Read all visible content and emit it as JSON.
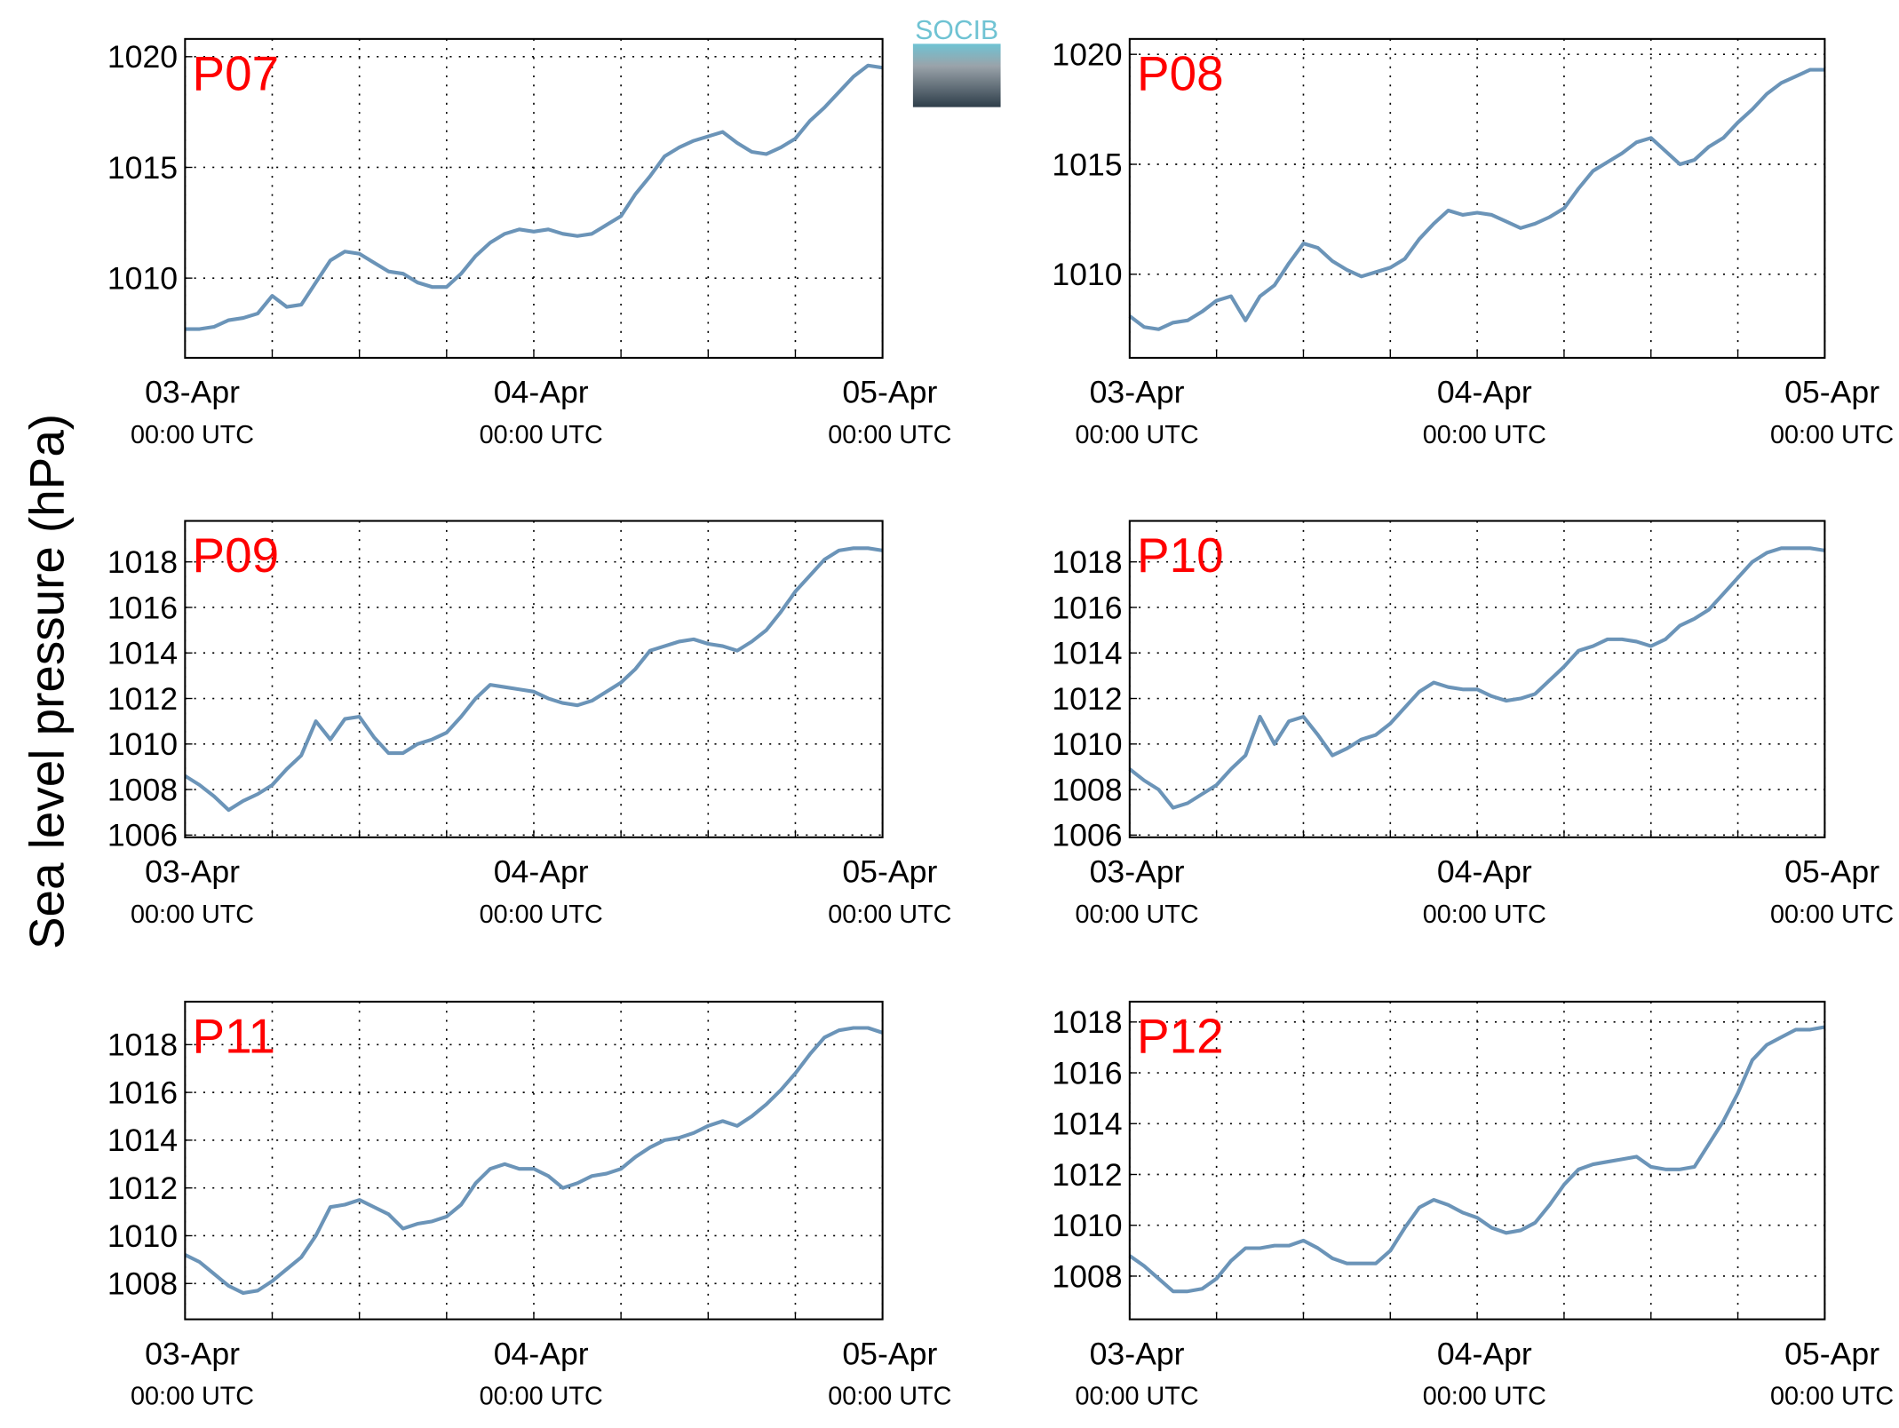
{
  "ylabel": "Sea level pressure (hPa)",
  "logo": "SOCIB",
  "chart_data": [
    {
      "type": "line",
      "title": "P07",
      "x": [
        0,
        1,
        2,
        3,
        4,
        5,
        6,
        7,
        8,
        9,
        10,
        11,
        12,
        13,
        14,
        15,
        16,
        17,
        18,
        19,
        20,
        21,
        22,
        23,
        24,
        25,
        26,
        27,
        28,
        29,
        30,
        31,
        32,
        33,
        34,
        35,
        36,
        37,
        38,
        39,
        40,
        41,
        42,
        43,
        44,
        45,
        46,
        47,
        48
      ],
      "series": [
        {
          "name": "P07",
          "color": "#6b94b8",
          "values": [
            1007.7,
            1007.7,
            1007.8,
            1008.1,
            1008.2,
            1008.4,
            1009.2,
            1008.7,
            1008.8,
            1009.8,
            1010.8,
            1011.2,
            1011.1,
            1010.7,
            1010.3,
            1010.2,
            1009.8,
            1009.6,
            1009.6,
            1010.2,
            1011.0,
            1011.6,
            1012.0,
            1012.2,
            1012.1,
            1012.2,
            1012.0,
            1011.9,
            1012.0,
            1012.4,
            1012.8,
            1013.8,
            1014.6,
            1015.5,
            1015.9,
            1016.2,
            1016.4,
            1016.6,
            1016.1,
            1015.7,
            1015.6,
            1015.9,
            1016.3,
            1017.1,
            1017.7,
            1018.4,
            1019.1,
            1019.6,
            1019.5
          ]
        }
      ],
      "xlim": [
        0,
        48
      ],
      "xticks": [
        {
          "value": 0,
          "label": "03-Apr\n00:00 UTC"
        },
        6,
        12,
        18,
        {
          "value": 24,
          "label": "04-Apr\n00:00 UTC"
        },
        30,
        36,
        42,
        {
          "value": 48,
          "label": "05-Apr\n00:00 UTC"
        }
      ],
      "ylim": [
        1006.4,
        1020.8
      ],
      "yticks": [
        1010,
        1015,
        1020
      ],
      "grid": true
    },
    {
      "type": "line",
      "title": "P08",
      "x": [
        0,
        1,
        2,
        3,
        4,
        5,
        6,
        7,
        8,
        9,
        10,
        11,
        12,
        13,
        14,
        15,
        16,
        17,
        18,
        19,
        20,
        21,
        22,
        23,
        24,
        25,
        26,
        27,
        28,
        29,
        30,
        31,
        32,
        33,
        34,
        35,
        36,
        37,
        38,
        39,
        40,
        41,
        42,
        43,
        44,
        45,
        46,
        47,
        48
      ],
      "series": [
        {
          "name": "P08",
          "color": "#6b94b8",
          "values": [
            1008.1,
            1007.6,
            1007.5,
            1007.8,
            1007.9,
            1008.3,
            1008.8,
            1009.0,
            1007.9,
            1009.0,
            1009.5,
            1010.5,
            1011.4,
            1011.2,
            1010.6,
            1010.2,
            1009.9,
            1010.1,
            1010.3,
            1010.7,
            1011.6,
            1012.3,
            1012.9,
            1012.7,
            1012.8,
            1012.7,
            1012.4,
            1012.1,
            1012.3,
            1012.6,
            1013.0,
            1013.9,
            1014.7,
            1015.1,
            1015.5,
            1016.0,
            1016.2,
            1015.6,
            1015.0,
            1015.2,
            1015.8,
            1016.2,
            1016.9,
            1017.5,
            1018.2,
            1018.7,
            1019.0,
            1019.3,
            1019.3
          ]
        }
      ],
      "xlim": [
        0,
        48
      ],
      "xticks": [
        {
          "value": 0,
          "label": "03-Apr\n00:00 UTC"
        },
        6,
        12,
        18,
        {
          "value": 24,
          "label": "04-Apr\n00:00 UTC"
        },
        30,
        36,
        42,
        {
          "value": 48,
          "label": "05-Apr\n00:00 UTC"
        }
      ],
      "ylim": [
        1006.2,
        1020.7
      ],
      "yticks": [
        1010,
        1015,
        1020
      ],
      "grid": true
    },
    {
      "type": "line",
      "title": "P09",
      "x": [
        0,
        1,
        2,
        3,
        4,
        5,
        6,
        7,
        8,
        9,
        10,
        11,
        12,
        13,
        14,
        15,
        16,
        17,
        18,
        19,
        20,
        21,
        22,
        23,
        24,
        25,
        26,
        27,
        28,
        29,
        30,
        31,
        32,
        33,
        34,
        35,
        36,
        37,
        38,
        39,
        40,
        41,
        42,
        43,
        44,
        45,
        46,
        47,
        48
      ],
      "series": [
        {
          "name": "P09",
          "color": "#6b94b8",
          "values": [
            1008.6,
            1008.2,
            1007.7,
            1007.1,
            1007.5,
            1007.8,
            1008.2,
            1008.9,
            1009.5,
            1011.0,
            1010.2,
            1011.1,
            1011.2,
            1010.3,
            1009.6,
            1009.6,
            1010.0,
            1010.2,
            1010.5,
            1011.2,
            1012.0,
            1012.6,
            1012.5,
            1012.4,
            1012.3,
            1012.0,
            1011.8,
            1011.7,
            1011.9,
            1012.3,
            1012.7,
            1013.3,
            1014.1,
            1014.3,
            1014.5,
            1014.6,
            1014.4,
            1014.3,
            1014.1,
            1014.5,
            1015.0,
            1015.8,
            1016.7,
            1017.4,
            1018.1,
            1018.5,
            1018.6,
            1018.6,
            1018.5
          ]
        }
      ],
      "xlim": [
        0,
        48
      ],
      "xticks": [
        {
          "value": 0,
          "label": "03-Apr\n00:00 UTC"
        },
        6,
        12,
        18,
        {
          "value": 24,
          "label": "04-Apr\n00:00 UTC"
        },
        30,
        36,
        42,
        {
          "value": 48,
          "label": "05-Apr\n00:00 UTC"
        }
      ],
      "ylim": [
        1005.9,
        1019.8
      ],
      "yticks": [
        1006,
        1008,
        1010,
        1012,
        1014,
        1016,
        1018
      ],
      "grid": true
    },
    {
      "type": "line",
      "title": "P10",
      "x": [
        0,
        1,
        2,
        3,
        4,
        5,
        6,
        7,
        8,
        9,
        10,
        11,
        12,
        13,
        14,
        15,
        16,
        17,
        18,
        19,
        20,
        21,
        22,
        23,
        24,
        25,
        26,
        27,
        28,
        29,
        30,
        31,
        32,
        33,
        34,
        35,
        36,
        37,
        38,
        39,
        40,
        41,
        42,
        43,
        44,
        45,
        46,
        47,
        48
      ],
      "series": [
        {
          "name": "P10",
          "color": "#6b94b8",
          "values": [
            1008.9,
            1008.4,
            1008.0,
            1007.2,
            1007.4,
            1007.8,
            1008.2,
            1008.9,
            1009.5,
            1011.2,
            1010.0,
            1011.0,
            1011.2,
            1010.4,
            1009.5,
            1009.8,
            1010.2,
            1010.4,
            1010.9,
            1011.6,
            1012.3,
            1012.7,
            1012.5,
            1012.4,
            1012.4,
            1012.1,
            1011.9,
            1012.0,
            1012.2,
            1012.8,
            1013.4,
            1014.1,
            1014.3,
            1014.6,
            1014.6,
            1014.5,
            1014.3,
            1014.6,
            1015.2,
            1015.5,
            1015.9,
            1016.6,
            1017.3,
            1018.0,
            1018.4,
            1018.6,
            1018.6,
            1018.6,
            1018.5
          ]
        }
      ],
      "xlim": [
        0,
        48
      ],
      "xticks": [
        {
          "value": 0,
          "label": "03-Apr\n00:00 UTC"
        },
        6,
        12,
        18,
        {
          "value": 24,
          "label": "04-Apr\n00:00 UTC"
        },
        30,
        36,
        42,
        {
          "value": 48,
          "label": "05-Apr\n00:00 UTC"
        }
      ],
      "ylim": [
        1005.9,
        1019.8
      ],
      "yticks": [
        1006,
        1008,
        1010,
        1012,
        1014,
        1016,
        1018
      ],
      "grid": true
    },
    {
      "type": "line",
      "title": "P11",
      "x": [
        0,
        1,
        2,
        3,
        4,
        5,
        6,
        7,
        8,
        9,
        10,
        11,
        12,
        13,
        14,
        15,
        16,
        17,
        18,
        19,
        20,
        21,
        22,
        23,
        24,
        25,
        26,
        27,
        28,
        29,
        30,
        31,
        32,
        33,
        34,
        35,
        36,
        37,
        38,
        39,
        40,
        41,
        42,
        43,
        44,
        45,
        46,
        47,
        48
      ],
      "series": [
        {
          "name": "P11",
          "color": "#6b94b8",
          "values": [
            1009.2,
            1008.9,
            1008.4,
            1007.9,
            1007.6,
            1007.7,
            1008.1,
            1008.6,
            1009.1,
            1010.0,
            1011.2,
            1011.3,
            1011.5,
            1011.2,
            1010.9,
            1010.3,
            1010.5,
            1010.6,
            1010.8,
            1011.3,
            1012.2,
            1012.8,
            1013.0,
            1012.8,
            1012.8,
            1012.5,
            1012.0,
            1012.2,
            1012.5,
            1012.6,
            1012.8,
            1013.3,
            1013.7,
            1014.0,
            1014.1,
            1014.3,
            1014.6,
            1014.8,
            1014.6,
            1015.0,
            1015.5,
            1016.1,
            1016.8,
            1017.6,
            1018.3,
            1018.6,
            1018.7,
            1018.7,
            1018.5
          ]
        }
      ],
      "xlim": [
        0,
        48
      ],
      "xticks": [
        {
          "value": 0,
          "label": "03-Apr\n00:00 UTC"
        },
        6,
        12,
        18,
        {
          "value": 24,
          "label": "04-Apr\n00:00 UTC"
        },
        30,
        36,
        42,
        {
          "value": 48,
          "label": "05-Apr\n00:00 UTC"
        }
      ],
      "ylim": [
        1006.5,
        1019.8
      ],
      "yticks": [
        1008,
        1010,
        1012,
        1014,
        1016,
        1018
      ],
      "grid": true
    },
    {
      "type": "line",
      "title": "P12",
      "x": [
        0,
        1,
        2,
        3,
        4,
        5,
        6,
        7,
        8,
        9,
        10,
        11,
        12,
        13,
        14,
        15,
        16,
        17,
        18,
        19,
        20,
        21,
        22,
        23,
        24,
        25,
        26,
        27,
        28,
        29,
        30,
        31,
        32,
        33,
        34,
        35,
        36,
        37,
        38,
        39,
        40,
        41,
        42,
        43,
        44,
        45,
        46,
        47,
        48
      ],
      "series": [
        {
          "name": "P12",
          "color": "#6b94b8",
          "values": [
            1008.8,
            1008.4,
            1007.9,
            1007.4,
            1007.4,
            1007.5,
            1007.9,
            1008.6,
            1009.1,
            1009.1,
            1009.2,
            1009.2,
            1009.4,
            1009.1,
            1008.7,
            1008.5,
            1008.5,
            1008.5,
            1009.0,
            1009.9,
            1010.7,
            1011.0,
            1010.8,
            1010.5,
            1010.3,
            1009.9,
            1009.7,
            1009.8,
            1010.1,
            1010.8,
            1011.6,
            1012.2,
            1012.4,
            1012.5,
            1012.6,
            1012.7,
            1012.3,
            1012.2,
            1012.2,
            1012.3,
            1013.2,
            1014.1,
            1015.2,
            1016.5,
            1017.1,
            1017.4,
            1017.7,
            1017.7,
            1017.8
          ]
        }
      ],
      "xlim": [
        0,
        48
      ],
      "xticks": [
        {
          "value": 0,
          "label": "03-Apr\n00:00 UTC"
        },
        6,
        12,
        18,
        {
          "value": 24,
          "label": "04-Apr\n00:00 UTC"
        },
        30,
        36,
        42,
        {
          "value": 48,
          "label": "05-Apr\n00:00 UTC"
        }
      ],
      "ylim": [
        1006.3,
        1018.8
      ],
      "yticks": [
        1008,
        1010,
        1012,
        1014,
        1016,
        1018
      ],
      "grid": true
    }
  ]
}
